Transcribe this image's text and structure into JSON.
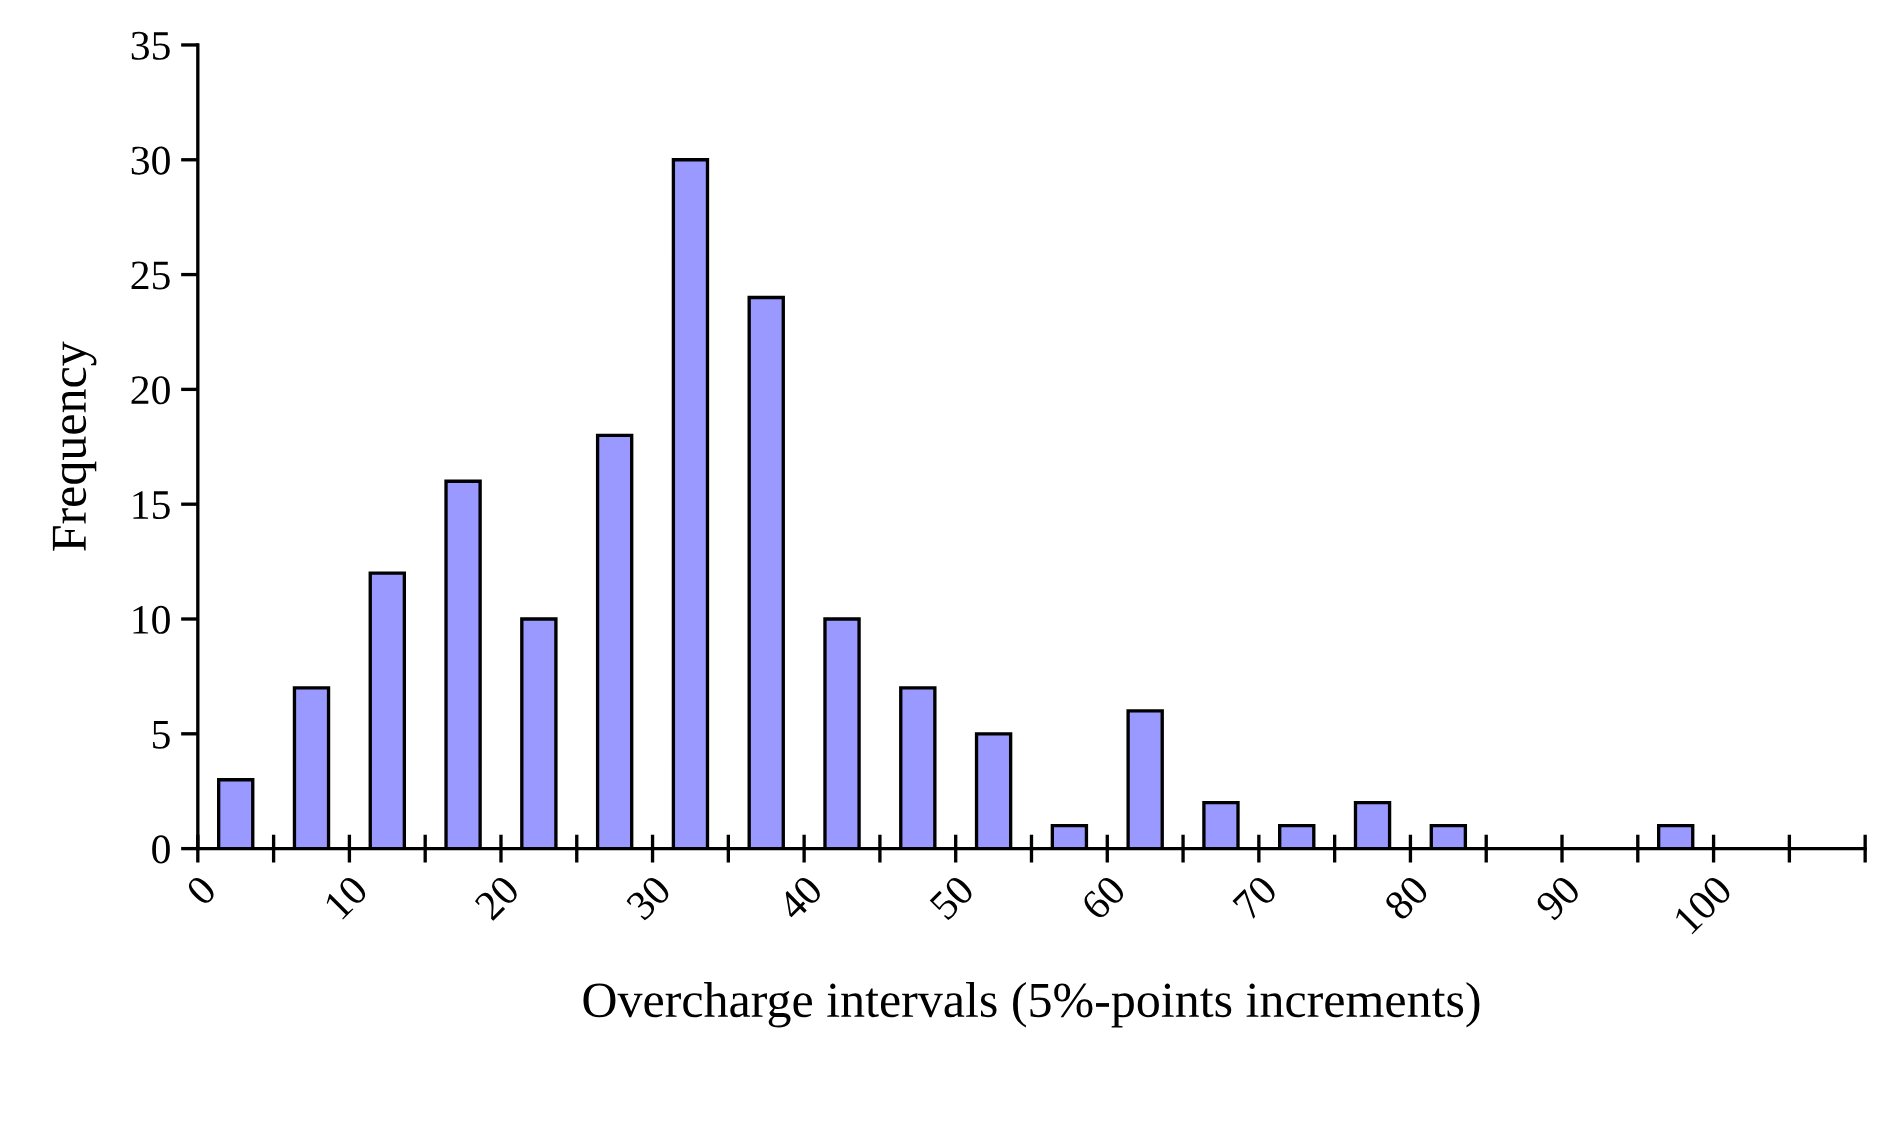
{
  "chart_data": {
    "type": "histogram",
    "xlabel": "Overcharge intervals (5%-points increments)",
    "ylabel": "Frequency",
    "bins": [
      0,
      5,
      10,
      15,
      20,
      25,
      30,
      35,
      40,
      45,
      50,
      55,
      60,
      65,
      70,
      75,
      80,
      85,
      90,
      95,
      100,
      105,
      110
    ],
    "values": [
      3,
      7,
      12,
      16,
      10,
      18,
      30,
      24,
      10,
      7,
      5,
      1,
      6,
      2,
      1,
      2,
      1,
      0,
      0,
      1,
      0,
      0
    ],
    "color": "#9999ff",
    "xlim": [
      0,
      110
    ],
    "xticks": [
      0,
      {
        "value": 5,
        "label": null
      },
      10,
      {
        "value": 15,
        "label": null
      },
      20,
      {
        "value": 25,
        "label": null
      },
      30,
      {
        "value": 35,
        "label": null
      },
      40,
      {
        "value": 45,
        "label": null
      },
      50,
      {
        "value": 55,
        "label": null
      },
      60,
      {
        "value": 65,
        "label": null
      },
      70,
      {
        "value": 75,
        "label": null
      },
      80,
      {
        "value": 85,
        "label": null
      },
      90,
      {
        "value": 95,
        "label": null
      },
      100,
      {
        "value": 105,
        "label": null
      },
      {
        "value": 110,
        "label": null
      }
    ],
    "ylim": [
      0,
      35
    ],
    "yticks": [
      0,
      5,
      10,
      15,
      20,
      25,
      30,
      35
    ],
    "grid": false
  }
}
